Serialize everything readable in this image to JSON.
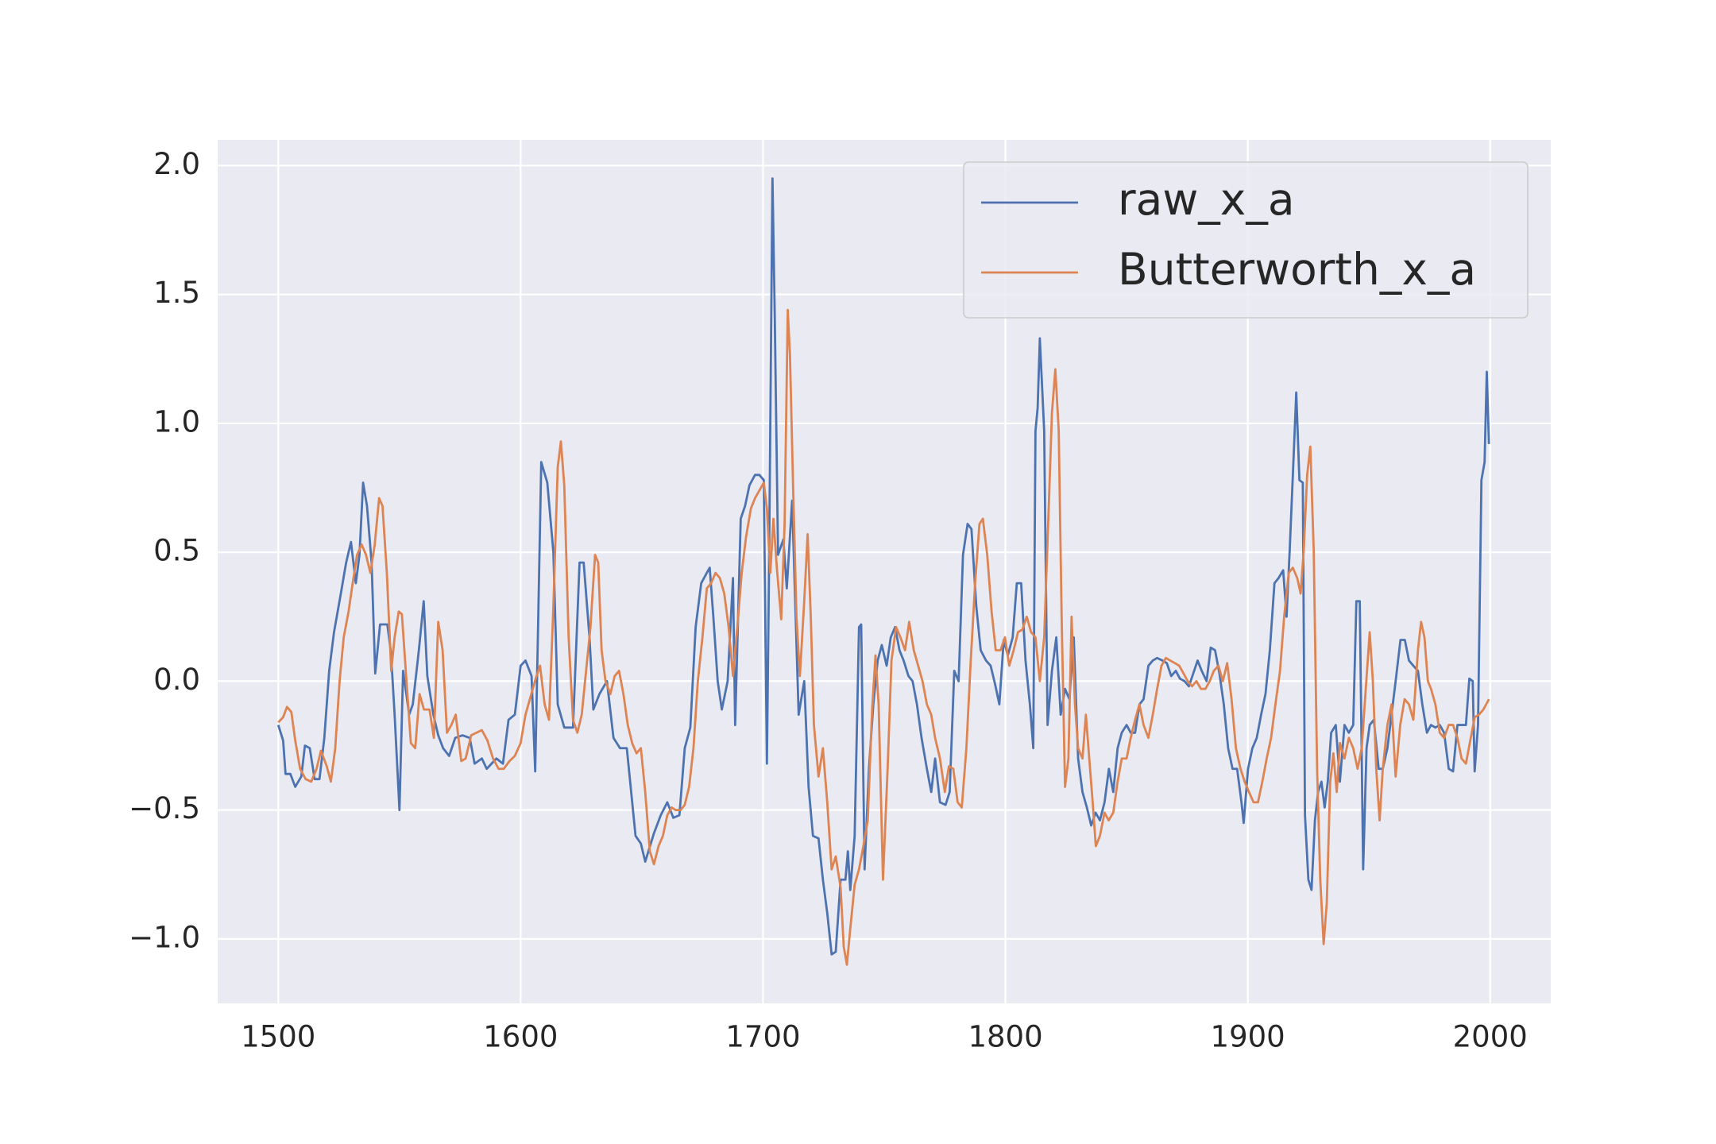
{
  "chart_data": {
    "type": "line",
    "xlim": [
      1475,
      2025
    ],
    "ylim": [
      -1.25,
      2.1
    ],
    "xticks": [
      1500,
      1600,
      1700,
      1800,
      1900,
      2000
    ],
    "yticks": [
      {
        "value": -1.0,
        "label": "−1.0"
      },
      {
        "value": -0.5,
        "label": "−0.5"
      },
      {
        "value": 0.0,
        "label": "0.0"
      },
      {
        "value": 0.5,
        "label": "0.5"
      },
      {
        "value": 1.0,
        "label": "1.0"
      },
      {
        "value": 1.5,
        "label": "1.5"
      },
      {
        "value": 2.0,
        "label": "2.0"
      }
    ],
    "grid": true,
    "legend": "upper right",
    "series": [
      {
        "name": "raw_x_a",
        "color": "#4c72b0",
        "x": [
          1500,
          1502,
          1503,
          1505,
          1507,
          1509.5,
          1511,
          1513,
          1515,
          1517,
          1519,
          1521,
          1523,
          1526,
          1528,
          1530,
          1532,
          1533.5,
          1535,
          1536.6,
          1538.5,
          1540,
          1542,
          1545,
          1546.5,
          1548,
          1550,
          1551.5,
          1554,
          1555.5,
          1558,
          1560,
          1561.5,
          1564,
          1566,
          1568,
          1570.5,
          1573,
          1576,
          1579,
          1581,
          1584,
          1586,
          1590,
          1592.7,
          1595,
          1597.6,
          1600,
          1602,
          1604.5,
          1606,
          1607,
          1608.5,
          1611,
          1613.5,
          1615.3,
          1618,
          1621.6,
          1624.3,
          1626,
          1628.4,
          1630,
          1632.5,
          1635.6,
          1638.3,
          1641,
          1643.8,
          1645.6,
          1647.4,
          1649.6,
          1651.4,
          1655,
          1657.8,
          1660.5,
          1663,
          1665.5,
          1667.7,
          1670,
          1672.2,
          1674.5,
          1676.8,
          1678,
          1679.5,
          1681.3,
          1683,
          1685.4,
          1687.6,
          1688.5,
          1690.8,
          1692.6,
          1694.4,
          1696.7,
          1698.5,
          1700.3,
          1701.6,
          1702.5,
          1703.9,
          1704.8,
          1706.2,
          1708.4,
          1709.8,
          1712,
          1714.7,
          1717,
          1718.8,
          1720.6,
          1722.9,
          1724.7,
          1726.5,
          1728.3,
          1730,
          1732,
          1734,
          1735,
          1736,
          1737.8,
          1739.6,
          1740.5,
          1741.9,
          1743.7,
          1745.5,
          1747.3,
          1749,
          1751,
          1752.7,
          1754.5,
          1756.3,
          1758,
          1760,
          1761.7,
          1763.5,
          1765.4,
          1767.6,
          1769.4,
          1771,
          1773,
          1775.3,
          1777,
          1778.9,
          1780.7,
          1782.5,
          1784.4,
          1786,
          1788,
          1789.8,
          1792,
          1793.9,
          1795.7,
          1797.5,
          1799.3,
          1801,
          1803,
          1804.7,
          1806.5,
          1808.3,
          1810.1,
          1811.5,
          1812.4,
          1813.3,
          1814.2,
          1816,
          1817.4,
          1819.2,
          1821,
          1822.8,
          1824.6,
          1826.4,
          1828.2,
          1830,
          1831.8,
          1833.6,
          1835.4,
          1837.2,
          1839,
          1840.9,
          1842.7,
          1844.5,
          1846.3,
          1848,
          1850,
          1851.7,
          1853.5,
          1855.3,
          1857,
          1859,
          1860.8,
          1862.6,
          1864.8,
          1866.6,
          1868.4,
          1870.3,
          1872,
          1873.9,
          1875.7,
          1877.5,
          1879.3,
          1881,
          1883,
          1884.7,
          1886.5,
          1888.3,
          1890.1,
          1891.9,
          1893.7,
          1895.6,
          1897.4,
          1898.3,
          1900.1,
          1901.9,
          1903.7,
          1905.5,
          1907.3,
          1909.1,
          1911,
          1912.7,
          1914.6,
          1916,
          1917.3,
          1918.6,
          1920,
          1921.3,
          1922.7,
          1923.6,
          1925,
          1926.3,
          1927.7,
          1929,
          1930.4,
          1931.7,
          1933,
          1934.4,
          1936.3,
          1938,
          1939.9,
          1941.7,
          1943.5,
          1944.8,
          1946.2,
          1947.6,
          1949,
          1950.3,
          1952,
          1954,
          1955.7,
          1957.6,
          1959.3,
          1961,
          1963,
          1964.8,
          1966.5,
          1968.3,
          1970.2,
          1972,
          1973.9,
          1975.6,
          1977.4,
          1979.2,
          1981,
          1982.9,
          1984.7,
          1986.5,
          1988.2,
          1990,
          1991.4,
          1992.8,
          1993.6,
          1995,
          1996.4,
          1997.7,
          1998.6,
          1999.5
        ],
        "values": [
          -0.17,
          -0.23,
          -0.36,
          -0.36,
          -0.41,
          -0.37,
          -0.25,
          -0.26,
          -0.38,
          -0.38,
          -0.22,
          0.04,
          0.19,
          0.35,
          0.46,
          0.54,
          0.38,
          0.49,
          0.77,
          0.68,
          0.46,
          0.03,
          0.22,
          0.22,
          0.11,
          -0.13,
          -0.5,
          0.04,
          -0.13,
          -0.09,
          0.12,
          0.31,
          0.02,
          -0.13,
          -0.21,
          -0.26,
          -0.29,
          -0.22,
          -0.21,
          -0.22,
          -0.32,
          -0.3,
          -0.34,
          -0.3,
          -0.32,
          -0.15,
          -0.13,
          0.06,
          0.08,
          0.02,
          -0.35,
          0.12,
          0.85,
          0.77,
          0.5,
          -0.09,
          -0.18,
          -0.18,
          0.46,
          0.46,
          0.17,
          -0.11,
          -0.05,
          0,
          -0.22,
          -0.26,
          -0.26,
          -0.43,
          -0.6,
          -0.63,
          -0.7,
          -0.59,
          -0.52,
          -0.47,
          -0.53,
          -0.52,
          -0.26,
          -0.18,
          0.21,
          0.38,
          0.42,
          0.44,
          0.25,
          0,
          -0.11,
          0,
          0.4,
          -0.17,
          0.63,
          0.68,
          0.76,
          0.8,
          0.8,
          0.78,
          -0.32,
          0.46,
          1.95,
          1.44,
          0.49,
          0.55,
          0.36,
          0.7,
          -0.13,
          0,
          -0.41,
          -0.6,
          -0.61,
          -0.77,
          -0.9,
          -1.06,
          -1.05,
          -0.77,
          -0.77,
          -0.66,
          -0.81,
          -0.6,
          0.21,
          0.22,
          -0.73,
          -0.34,
          -0.09,
          0.08,
          0.14,
          0.06,
          0.17,
          0.21,
          0.12,
          0.08,
          0.02,
          0,
          -0.09,
          -0.22,
          -0.34,
          -0.43,
          -0.3,
          -0.47,
          -0.48,
          -0.43,
          0.04,
          0,
          0.49,
          0.61,
          0.59,
          0.29,
          0.12,
          0.08,
          0.06,
          -0.01,
          -0.09,
          0.16,
          0.1,
          0.17,
          0.38,
          0.38,
          0.08,
          -0.09,
          -0.26,
          0.97,
          1.06,
          1.33,
          0.97,
          -0.17,
          0.04,
          0.17,
          -0.13,
          -0.03,
          -0.07,
          0.17,
          -0.3,
          -0.43,
          -0.49,
          -0.56,
          -0.51,
          -0.54,
          -0.47,
          -0.34,
          -0.43,
          -0.26,
          -0.2,
          -0.17,
          -0.2,
          -0.2,
          -0.09,
          -0.07,
          0.06,
          0.08,
          0.09,
          0.08,
          0.07,
          0.02,
          0.04,
          0.01,
          0,
          -0.02,
          0.03,
          0.08,
          0.04,
          0,
          0.13,
          0.12,
          0.03,
          -0.09,
          -0.26,
          -0.34,
          -0.34,
          -0.47,
          -0.55,
          -0.34,
          -0.26,
          -0.22,
          -0.13,
          -0.05,
          0.12,
          0.38,
          0.4,
          0.43,
          0.25,
          0.51,
          0.8,
          1.12,
          0.78,
          0.77,
          -0.52,
          -0.77,
          -0.81,
          -0.54,
          -0.43,
          -0.39,
          -0.49,
          -0.39,
          -0.2,
          -0.17,
          -0.39,
          -0.17,
          -0.2,
          -0.17,
          0.31,
          0.31,
          -0.73,
          -0.26,
          -0.17,
          -0.15,
          -0.34,
          -0.34,
          -0.26,
          -0.13,
          0,
          0.16,
          0.16,
          0.08,
          0.06,
          0.04,
          -0.09,
          -0.2,
          -0.17,
          -0.18,
          -0.17,
          -0.2,
          -0.34,
          -0.35,
          -0.17,
          -0.17,
          -0.17,
          0.01,
          0,
          -0.35,
          -0.17,
          0.78,
          0.85,
          1.2,
          0.92
        ]
      },
      {
        "name": "Butterworth_x_a",
        "color": "#dd8452",
        "x": [
          1500,
          1502,
          1503.6,
          1505.4,
          1507,
          1509,
          1511.3,
          1513.6,
          1515.8,
          1517.6,
          1520,
          1521.7,
          1523.5,
          1525.3,
          1527,
          1529,
          1530.7,
          1532.5,
          1534.4,
          1536.2,
          1538,
          1539.8,
          1541.6,
          1543,
          1544.8,
          1546.6,
          1548,
          1549.7,
          1551,
          1552.9,
          1554.7,
          1556.5,
          1558.3,
          1560.1,
          1562.4,
          1564.2,
          1566,
          1567.8,
          1569.6,
          1571.4,
          1573.2,
          1575.5,
          1577.3,
          1579.6,
          1581.8,
          1584,
          1586.3,
          1588.6,
          1590.9,
          1593,
          1595.4,
          1597.6,
          1600,
          1602,
          1604.4,
          1606.2,
          1608,
          1609.9,
          1611.7,
          1613.5,
          1615.3,
          1616.6,
          1618,
          1619.8,
          1621.6,
          1623.4,
          1625.2,
          1627,
          1628.8,
          1630.7,
          1632,
          1633.4,
          1635,
          1637,
          1638.8,
          1640.6,
          1642.4,
          1644.2,
          1646,
          1647.8,
          1649.6,
          1651.4,
          1653.3,
          1655,
          1656.9,
          1658.7,
          1660.5,
          1662.3,
          1664,
          1666,
          1667.7,
          1669.5,
          1671.3,
          1673.1,
          1675,
          1676.8,
          1678.6,
          1680.4,
          1682.2,
          1684,
          1685.8,
          1687.6,
          1689.4,
          1691.2,
          1693,
          1695,
          1696.7,
          1698.5,
          1700.3,
          1701.6,
          1703,
          1704.3,
          1705.7,
          1707.5,
          1708.9,
          1710.2,
          1711.1,
          1712.5,
          1713.8,
          1715.2,
          1717,
          1718.4,
          1719.7,
          1721,
          1722.9,
          1724.7,
          1726.5,
          1728.3,
          1730,
          1732,
          1733.3,
          1734.6,
          1736,
          1737.8,
          1739.6,
          1741.4,
          1743.2,
          1745,
          1746.4,
          1747.7,
          1749.5,
          1751.4,
          1753,
          1754.9,
          1756.7,
          1758.6,
          1760.3,
          1762.2,
          1764,
          1765.8,
          1767.6,
          1769.4,
          1771,
          1773,
          1775,
          1776.7,
          1778.5,
          1780.3,
          1782,
          1783.9,
          1785.7,
          1787.5,
          1789.3,
          1790.7,
          1792.5,
          1794.3,
          1796,
          1798,
          1799.8,
          1801.6,
          1803.4,
          1805.2,
          1807,
          1808.8,
          1810.6,
          1812.4,
          1814.2,
          1816,
          1817.9,
          1819.2,
          1820.6,
          1822,
          1823.2,
          1824.6,
          1826,
          1827.3,
          1828.7,
          1830,
          1831.8,
          1833.2,
          1834.6,
          1836,
          1837.3,
          1839,
          1840.9,
          1842.6,
          1844.5,
          1846.3,
          1848,
          1850,
          1851.7,
          1853.5,
          1855.3,
          1857,
          1859,
          1860.8,
          1862.6,
          1864.4,
          1866.2,
          1868,
          1869.9,
          1871.7,
          1873.5,
          1875.2,
          1877,
          1878.8,
          1880.7,
          1882.5,
          1884.3,
          1886,
          1887.9,
          1889.7,
          1891.5,
          1893.3,
          1895.1,
          1897,
          1898.7,
          1900.5,
          1902.4,
          1904.2,
          1906,
          1907.8,
          1909.6,
          1911.4,
          1913.3,
          1915,
          1916.9,
          1918.6,
          1920.4,
          1921.8,
          1923.1,
          1924.5,
          1925.8,
          1927.2,
          1928.6,
          1929.9,
          1931.3,
          1932.6,
          1934,
          1935.3,
          1936.7,
          1938,
          1939.9,
          1941.7,
          1943.5,
          1945.3,
          1947,
          1948.9,
          1950.3,
          1951.6,
          1953,
          1954.4,
          1955.7,
          1957.6,
          1959.3,
          1961,
          1962.9,
          1964.7,
          1966.5,
          1968.3,
          1970.2,
          1971.5,
          1972.9,
          1974.3,
          1975.6,
          1977.4,
          1979.2,
          1981,
          1982.9,
          1984.7,
          1986.5,
          1988.2,
          1990,
          1992,
          1993.6,
          1995.4,
          1997.2,
          1999.5
        ],
        "values": [
          -0.16,
          -0.14,
          -0.1,
          -0.12,
          -0.23,
          -0.34,
          -0.38,
          -0.39,
          -0.34,
          -0.27,
          -0.33,
          -0.39,
          -0.26,
          0,
          0.17,
          0.27,
          0.38,
          0.49,
          0.53,
          0.49,
          0.42,
          0.53,
          0.71,
          0.68,
          0.42,
          0.04,
          0.17,
          0.27,
          0.26,
          0,
          -0.24,
          -0.26,
          -0.05,
          -0.11,
          -0.11,
          -0.22,
          0.23,
          0.12,
          -0.2,
          -0.17,
          -0.13,
          -0.31,
          -0.3,
          -0.21,
          -0.2,
          -0.19,
          -0.23,
          -0.3,
          -0.34,
          -0.34,
          -0.31,
          -0.29,
          -0.24,
          -0.13,
          -0.05,
          0.01,
          0.06,
          -0.09,
          -0.15,
          0.29,
          0.83,
          0.93,
          0.76,
          0.17,
          -0.15,
          -0.2,
          -0.13,
          0.04,
          0.21,
          0.49,
          0.46,
          0.12,
          0,
          -0.05,
          0.02,
          0.04,
          -0.05,
          -0.17,
          -0.24,
          -0.28,
          -0.26,
          -0.43,
          -0.66,
          -0.71,
          -0.64,
          -0.6,
          -0.52,
          -0.49,
          -0.5,
          -0.5,
          -0.48,
          -0.41,
          -0.26,
          0,
          0.17,
          0.36,
          0.38,
          0.42,
          0.4,
          0.34,
          0.21,
          0.02,
          0.21,
          0.42,
          0.56,
          0.67,
          0.71,
          0.74,
          0.77,
          0.67,
          0.42,
          0.63,
          0.44,
          0.24,
          0.61,
          1.44,
          1.27,
          0.72,
          0.25,
          0.02,
          0.31,
          0.57,
          0.25,
          -0.17,
          -0.37,
          -0.26,
          -0.47,
          -0.73,
          -0.68,
          -0.8,
          -1.03,
          -1.1,
          -0.96,
          -0.79,
          -0.73,
          -0.64,
          -0.54,
          -0.11,
          0.1,
          -0.09,
          -0.77,
          -0.34,
          0.08,
          0.21,
          0.17,
          0.12,
          0.23,
          0.12,
          0.06,
          0,
          -0.09,
          -0.13,
          -0.22,
          -0.3,
          -0.43,
          -0.33,
          -0.34,
          -0.47,
          -0.49,
          -0.26,
          0.08,
          0.38,
          0.61,
          0.63,
          0.49,
          0.27,
          0.12,
          0.12,
          0.17,
          0.06,
          0.12,
          0.19,
          0.2,
          0.25,
          0.19,
          0.17,
          0,
          0.17,
          0.68,
          1.04,
          1.21,
          0.97,
          0.25,
          -0.41,
          -0.3,
          0.25,
          -0.09,
          -0.26,
          -0.3,
          -0.13,
          -0.3,
          -0.47,
          -0.64,
          -0.6,
          -0.51,
          -0.54,
          -0.51,
          -0.39,
          -0.3,
          -0.3,
          -0.22,
          -0.15,
          -0.09,
          -0.17,
          -0.22,
          -0.13,
          -0.03,
          0.06,
          0.09,
          0.08,
          0.07,
          0.06,
          0.03,
          0,
          -0.02,
          0,
          -0.03,
          -0.03,
          0,
          0.04,
          0.06,
          0,
          0.07,
          -0.07,
          -0.26,
          -0.34,
          -0.39,
          -0.43,
          -0.47,
          -0.47,
          -0.39,
          -0.3,
          -0.22,
          -0.09,
          0.04,
          0.25,
          0.42,
          0.44,
          0.4,
          0.34,
          0.51,
          0.8,
          0.91,
          0.51,
          -0.34,
          -0.77,
          -1.02,
          -0.86,
          -0.39,
          -0.28,
          -0.43,
          -0.24,
          -0.3,
          -0.22,
          -0.26,
          -0.34,
          -0.26,
          0,
          0.19,
          0,
          -0.34,
          -0.54,
          -0.34,
          -0.17,
          -0.09,
          -0.37,
          -0.17,
          -0.07,
          -0.09,
          -0.15,
          0.12,
          0.23,
          0.17,
          0,
          -0.03,
          -0.09,
          -0.2,
          -0.22,
          -0.17,
          -0.17,
          -0.22,
          -0.3,
          -0.32,
          -0.22,
          -0.14,
          -0.13,
          -0.11,
          -0.07
        ]
      }
    ]
  }
}
